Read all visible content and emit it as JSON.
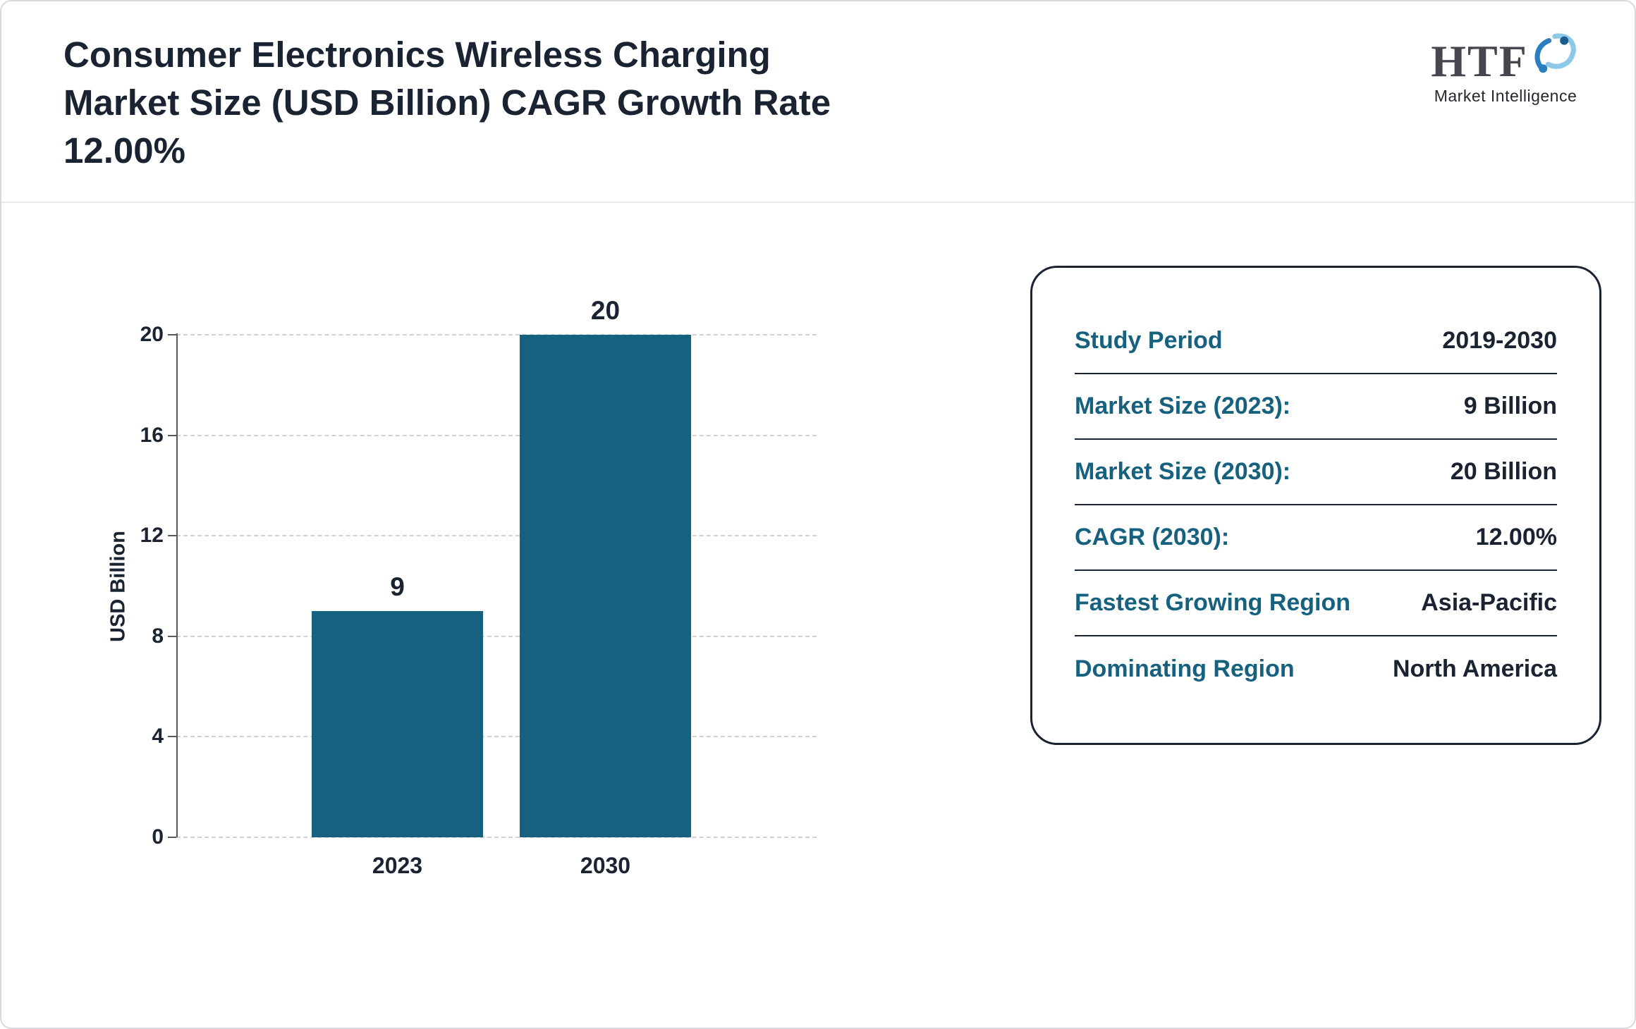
{
  "header": {
    "title_lines": [
      "Consumer Electronics Wireless Charging",
      "Market Size (USD Billion) CAGR Growth Rate",
      "12.00%"
    ],
    "logo": {
      "text": "HTF",
      "subtext": "Market Intelligence"
    }
  },
  "chart_data": {
    "type": "bar",
    "categories": [
      "2023",
      "2030"
    ],
    "values": [
      9,
      20
    ],
    "title": "Consumer Electronics Wireless Charging Market Size (USD Billion) CAGR Growth Rate 12.00%",
    "xlabel": "",
    "ylabel": "USD Billion",
    "ylim": [
      0,
      20
    ],
    "yticks": [
      0,
      4,
      8,
      12,
      16,
      20
    ],
    "grid": "dashed-horizontal",
    "legend": "none",
    "bar_color": "#15617f"
  },
  "info_panel": {
    "rows": [
      {
        "label": "Study Period",
        "value": "2019-2030"
      },
      {
        "label": "Market Size (2023):",
        "value": "9 Billion"
      },
      {
        "label": "Market Size (2030):",
        "value": "20 Billion"
      },
      {
        "label": "CAGR (2030):",
        "value": "12.00%"
      },
      {
        "label": "Fastest Growing Region",
        "value": "Asia-Pacific"
      },
      {
        "label": "Dominating Region",
        "value": "North America"
      }
    ]
  },
  "colors": {
    "bar_teal": "#15617f",
    "dark_navy": "#1a2332",
    "logo_blue": "#2b7fc1",
    "logo_light_blue": "#8ec8e8"
  }
}
